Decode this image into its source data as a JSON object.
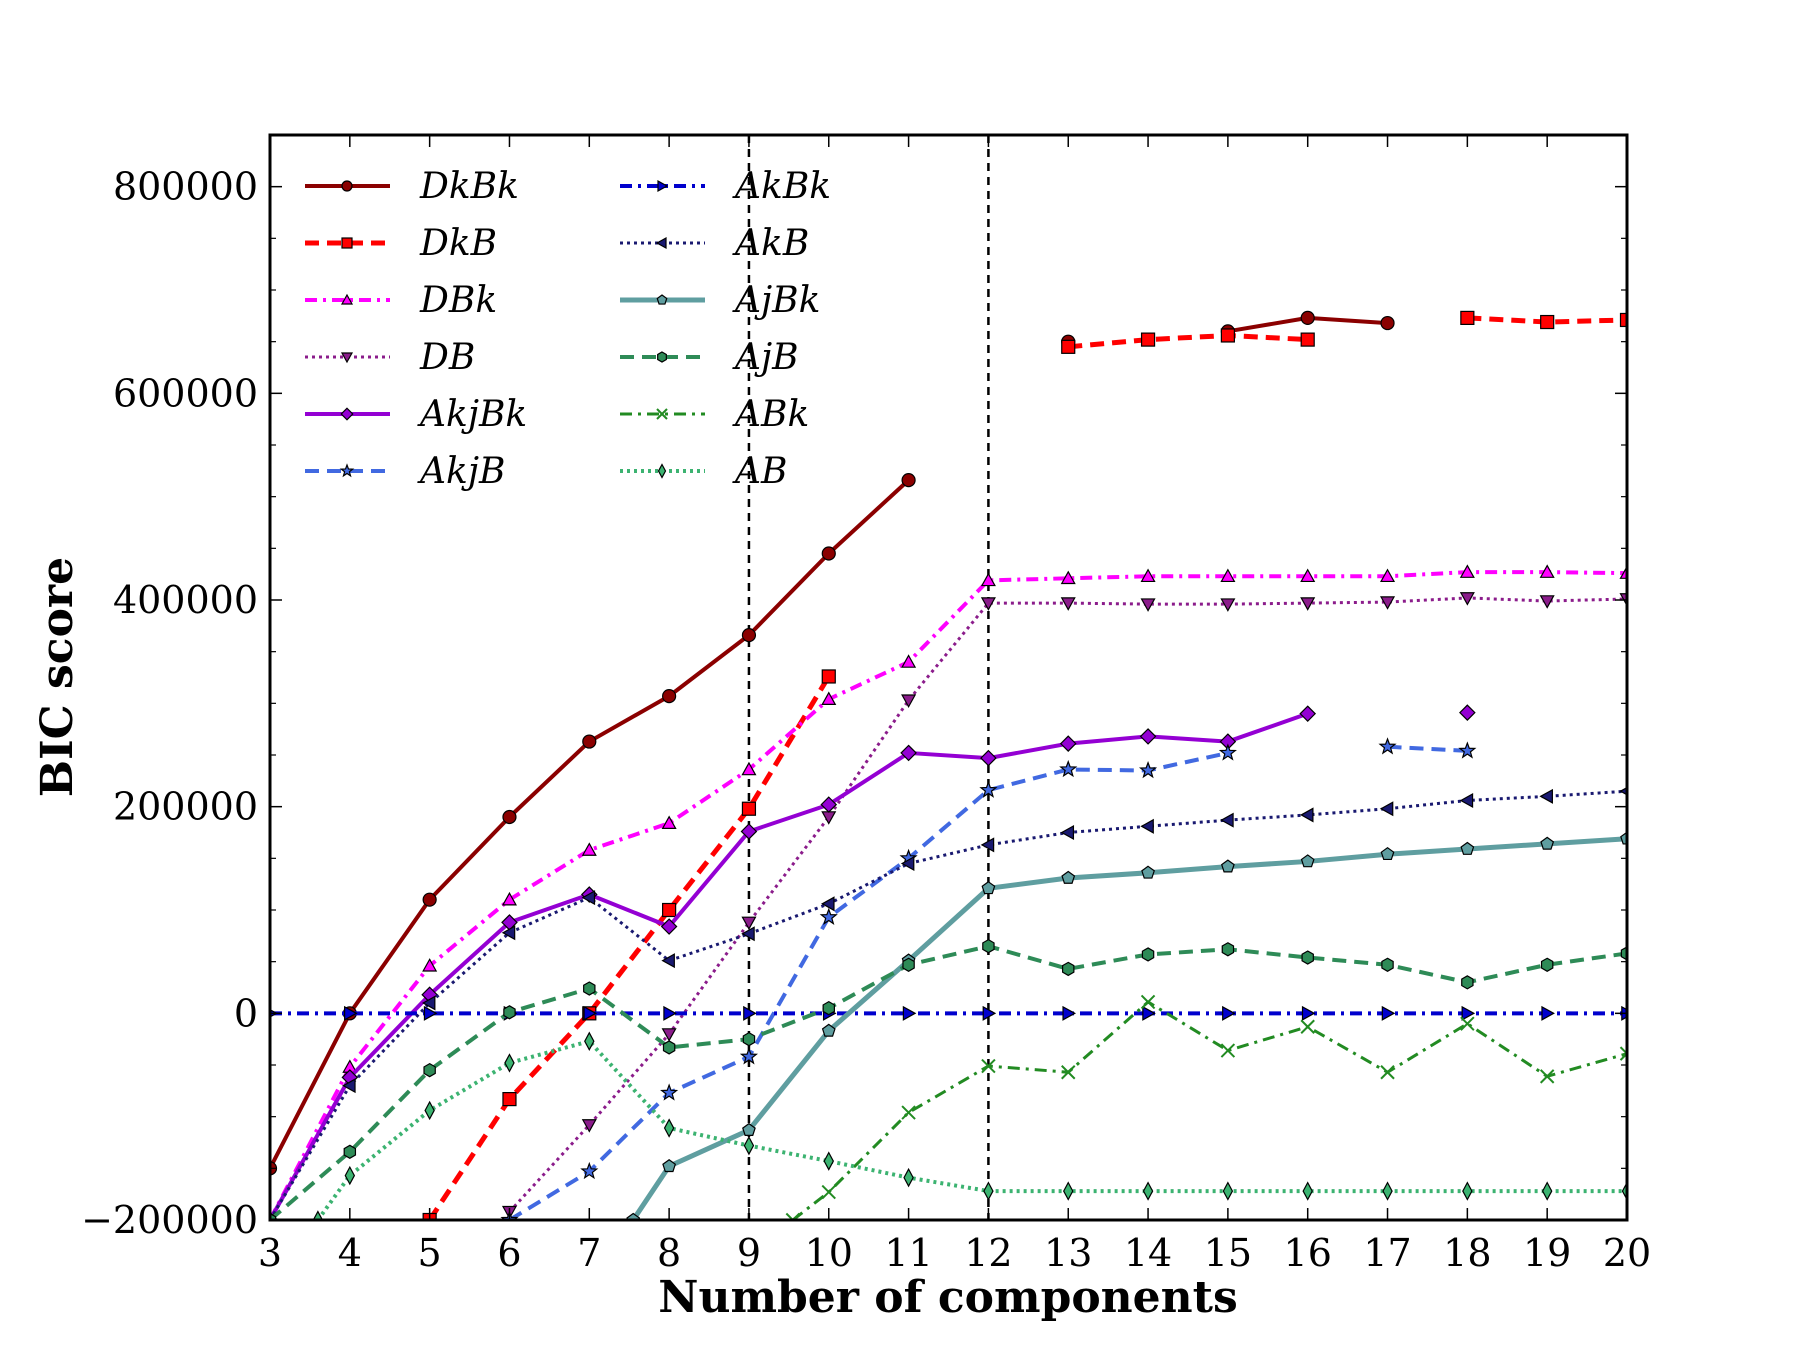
{
  "chart_data": {
    "type": "line",
    "title": "",
    "xlabel": "Number of components",
    "ylabel": "BIC score",
    "xlim": [
      3,
      20
    ],
    "ylim": [
      -200000,
      850000
    ],
    "xticks": [
      "3",
      "4",
      "5",
      "6",
      "7",
      "8",
      "9",
      "10",
      "11",
      "12",
      "13",
      "14",
      "15",
      "16",
      "17",
      "18",
      "19",
      "20"
    ],
    "yticks": [
      {
        "value": -200000,
        "label": "−200000"
      },
      {
        "value": 0,
        "label": "0"
      },
      {
        "value": 200000,
        "label": "200000"
      },
      {
        "value": 400000,
        "label": "400000"
      },
      {
        "value": 600000,
        "label": "600000"
      },
      {
        "value": 800000,
        "label": "800000"
      }
    ],
    "vlines": [
      9,
      12
    ],
    "grid": false,
    "legend_position": "top-left",
    "series": [
      {
        "name": "DkBk",
        "color": "#8b0000",
        "dash": "solid",
        "width": 4,
        "marker": "circle",
        "points": [
          [
            3,
            -150000
          ],
          [
            4,
            0
          ],
          [
            5,
            110000
          ],
          [
            6,
            190000
          ],
          [
            7,
            263000
          ],
          [
            8,
            307000
          ],
          [
            9,
            366000
          ],
          [
            10,
            445000
          ],
          [
            11,
            516000
          ],
          null,
          [
            13,
            650000
          ],
          null,
          [
            15,
            660000
          ],
          [
            16,
            673000
          ],
          [
            17,
            668000
          ]
        ]
      },
      {
        "name": "DkB",
        "color": "#ff0000",
        "dash": "dashed",
        "width": 5,
        "marker": "square",
        "points": [
          [
            5,
            -200000
          ],
          [
            6,
            -83000
          ],
          [
            7,
            0
          ],
          [
            8,
            100000
          ],
          [
            9,
            198000
          ],
          [
            10,
            326000
          ],
          null,
          [
            13,
            645000
          ],
          [
            14,
            652000
          ],
          [
            15,
            656000
          ],
          [
            16,
            652000
          ],
          null,
          [
            18,
            673000
          ],
          [
            19,
            669000
          ],
          [
            20,
            671000
          ]
        ]
      },
      {
        "name": "DBk",
        "color": "#ff00ff",
        "dash": "dashdot",
        "width": 4,
        "marker": "triangle-up",
        "points": [
          [
            3,
            -200000
          ],
          [
            4,
            -52000
          ],
          [
            5,
            46000
          ],
          [
            6,
            110000
          ],
          [
            7,
            158000
          ],
          [
            8,
            184000
          ],
          [
            9,
            236000
          ],
          [
            10,
            304000
          ],
          [
            11,
            340000
          ],
          [
            12,
            419000
          ],
          [
            13,
            421000
          ],
          [
            14,
            423000
          ],
          [
            15,
            423000
          ],
          [
            16,
            423000
          ],
          [
            17,
            423000
          ],
          [
            18,
            427000
          ],
          [
            19,
            427000
          ],
          [
            20,
            426000
          ]
        ]
      },
      {
        "name": "DB",
        "color": "#8b1c8b",
        "dash": "dotted",
        "width": 3,
        "marker": "triangle-down",
        "points": [
          [
            6,
            -192000
          ],
          [
            7,
            -108000
          ],
          [
            8,
            -20000
          ],
          [
            9,
            88000
          ],
          [
            10,
            190000
          ],
          [
            11,
            303000
          ],
          [
            12,
            397000
          ],
          [
            13,
            397000
          ],
          [
            14,
            396000
          ],
          [
            15,
            396000
          ],
          [
            16,
            397000
          ],
          [
            17,
            398000
          ],
          [
            18,
            402000
          ],
          [
            19,
            399000
          ],
          [
            20,
            401000
          ]
        ]
      },
      {
        "name": "AkjBk",
        "color": "#9400d3",
        "dash": "solid",
        "width": 4,
        "marker": "diamond",
        "points": [
          [
            3,
            -200000
          ],
          [
            4,
            -62000
          ],
          [
            5,
            18000
          ],
          [
            6,
            88000
          ],
          [
            7,
            115000
          ],
          [
            8,
            84000
          ],
          [
            9,
            176000
          ],
          [
            10,
            202000
          ],
          [
            11,
            252000
          ],
          [
            12,
            247000
          ],
          [
            13,
            261000
          ],
          [
            14,
            268000
          ],
          [
            15,
            263000
          ],
          [
            16,
            290000
          ],
          null,
          [
            18,
            291000
          ]
        ]
      },
      {
        "name": "AkjB",
        "color": "#4169e1",
        "dash": "dashed",
        "width": 4,
        "marker": "star",
        "points": [
          [
            6,
            -200000
          ],
          [
            7,
            -153000
          ],
          [
            8,
            -77000
          ],
          [
            9,
            -42000
          ],
          [
            10,
            93000
          ],
          [
            11,
            150000
          ],
          [
            12,
            216000
          ],
          [
            13,
            236000
          ],
          [
            14,
            235000
          ],
          [
            15,
            252000
          ],
          null,
          [
            17,
            258000
          ],
          [
            18,
            254000
          ]
        ]
      },
      {
        "name": "AkBk",
        "color": "#0000cd",
        "dash": "dashdot",
        "width": 4,
        "marker": "triangle-right",
        "points": [
          [
            3,
            0
          ],
          [
            4,
            0
          ],
          [
            5,
            0
          ],
          [
            6,
            0
          ],
          [
            7,
            0
          ],
          [
            8,
            0
          ],
          [
            9,
            0
          ],
          [
            10,
            0
          ],
          [
            11,
            0
          ],
          [
            12,
            0
          ],
          [
            13,
            0
          ],
          [
            14,
            0
          ],
          [
            15,
            0
          ],
          [
            16,
            0
          ],
          [
            17,
            0
          ],
          [
            18,
            0
          ],
          [
            19,
            0
          ],
          [
            20,
            0
          ]
        ]
      },
      {
        "name": "AkB",
        "color": "#191970",
        "dash": "dotted",
        "width": 3,
        "marker": "triangle-left",
        "points": [
          [
            3,
            -200000
          ],
          [
            4,
            -70000
          ],
          [
            5,
            10000
          ],
          [
            6,
            78000
          ],
          [
            7,
            112000
          ],
          [
            8,
            51000
          ],
          [
            9,
            77000
          ],
          [
            10,
            106000
          ],
          [
            11,
            145000
          ],
          [
            12,
            163000
          ],
          [
            13,
            175000
          ],
          [
            14,
            181000
          ],
          [
            15,
            187000
          ],
          [
            16,
            192000
          ],
          [
            17,
            198000
          ],
          [
            18,
            206000
          ],
          [
            19,
            210000
          ],
          [
            20,
            215000
          ]
        ]
      },
      {
        "name": "AjBk",
        "color": "#5f9ea0",
        "dash": "solid",
        "width": 5,
        "marker": "pentagon",
        "points": [
          [
            7.55,
            -200000
          ],
          [
            8,
            -148000
          ],
          [
            9,
            -113000
          ],
          [
            10,
            -17000
          ],
          [
            11,
            51000
          ],
          [
            12,
            121000
          ],
          [
            13,
            131000
          ],
          [
            14,
            136000
          ],
          [
            15,
            142000
          ],
          [
            16,
            147000
          ],
          [
            17,
            154000
          ],
          [
            18,
            159000
          ],
          [
            19,
            164000
          ],
          [
            20,
            169000
          ]
        ]
      },
      {
        "name": "AjB",
        "color": "#2e8b57",
        "dash": "dashed",
        "width": 4,
        "marker": "hexagon",
        "points": [
          [
            3,
            -200000
          ],
          [
            4,
            -134000
          ],
          [
            5,
            -55000
          ],
          [
            6,
            1000
          ],
          [
            7,
            24000
          ],
          [
            8,
            -33000
          ],
          [
            9,
            -25000
          ],
          [
            10,
            5000
          ],
          [
            11,
            47000
          ],
          [
            12,
            65000
          ],
          [
            13,
            43000
          ],
          [
            14,
            57000
          ],
          [
            15,
            62000
          ],
          [
            16,
            54000
          ],
          [
            17,
            47000
          ],
          [
            18,
            30000
          ],
          [
            19,
            47000
          ],
          [
            20,
            58000
          ]
        ]
      },
      {
        "name": "ABk",
        "color": "#228b22",
        "dash": "dashdot",
        "width": 3,
        "marker": "x",
        "points": [
          [
            9.55,
            -200000
          ],
          [
            10,
            -173000
          ],
          [
            11,
            -96000
          ],
          [
            12,
            -51000
          ],
          [
            13,
            -57000
          ],
          [
            14,
            11000
          ],
          [
            15,
            -36000
          ],
          [
            16,
            -13000
          ],
          [
            17,
            -57000
          ],
          [
            18,
            -10000
          ],
          [
            19,
            -61000
          ],
          [
            20,
            -39000
          ]
        ]
      },
      {
        "name": "AB",
        "color": "#3cb371",
        "dash": "dotted",
        "width": 4,
        "marker": "thin-diamond",
        "points": [
          [
            3.6,
            -200000
          ],
          [
            4,
            -157000
          ],
          [
            5,
            -94000
          ],
          [
            6,
            -48000
          ],
          [
            7,
            -27000
          ],
          [
            8,
            -111000
          ],
          [
            9,
            -128000
          ],
          [
            10,
            -143000
          ],
          [
            11,
            -159000
          ],
          [
            12,
            -172000
          ],
          [
            13,
            -172000
          ],
          [
            14,
            -172000
          ],
          [
            15,
            -172000
          ],
          [
            16,
            -172000
          ],
          [
            17,
            -172000
          ],
          [
            18,
            -172000
          ],
          [
            19,
            -172000
          ],
          [
            20,
            -172000
          ]
        ]
      }
    ]
  }
}
